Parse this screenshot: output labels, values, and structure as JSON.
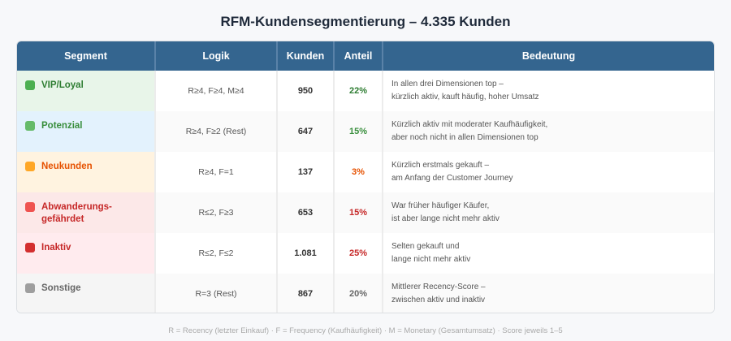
{
  "title": "RFM-Kundensegmentierung – 4.335 Kunden",
  "headers": [
    "Segment",
    "Logik",
    "Kunden",
    "Anteil",
    "Bedeutung"
  ],
  "rows": [
    {
      "segment": "VIP/Loyal",
      "logic": "R≥4, F≥4, M≥4",
      "customers": "950",
      "share": "22%",
      "meaning1": "In allen drei Dimensionen top –",
      "meaning2": "kürzlich aktiv, kauft häufig, hoher Umsatz",
      "bg": "#e8f5e9",
      "color": "#2e7d32",
      "dot": "#4caf50",
      "share_color": "#2e7d32"
    },
    {
      "segment": "Potenzial",
      "logic": "R≥4, F≥2 (Rest)",
      "customers": "647",
      "share": "15%",
      "meaning1": "Kürzlich aktiv mit moderater Kaufhäufigkeit,",
      "meaning2": "aber noch nicht in allen Dimensionen top",
      "bg": "#e3f2fd",
      "color": "#388e3c",
      "dot": "#66bb6a",
      "share_color": "#388e3c"
    },
    {
      "segment": "Neukunden",
      "logic": "R≥4, F=1",
      "customers": "137",
      "share": "3%",
      "meaning1": "Kürzlich erstmals gekauft –",
      "meaning2": "am Anfang der Customer Journey",
      "bg": "#fff3e0",
      "color": "#e65100",
      "dot": "#ffa726",
      "share_color": "#e65100"
    },
    {
      "segment": "Abwanderungs-gefährdet",
      "logic": "R≤2, F≥3",
      "customers": "653",
      "share": "15%",
      "meaning1": "War früher häufiger Käufer,",
      "meaning2": "ist aber lange nicht mehr aktiv",
      "bg": "#fce8e8",
      "color": "#c62828",
      "dot": "#ef5350",
      "share_color": "#c62828"
    },
    {
      "segment": "Inaktiv",
      "logic": "R≤2, F≤2",
      "customers": "1.081",
      "share": "25%",
      "meaning1": "Selten gekauft und",
      "meaning2": "lange nicht mehr aktiv",
      "bg": "#ffebee",
      "color": "#c62828",
      "dot": "#d32f2f",
      "share_color": "#c62828"
    },
    {
      "segment": "Sonstige",
      "logic": "R=3 (Rest)",
      "customers": "867",
      "share": "20%",
      "meaning1": "Mittlerer Recency-Score –",
      "meaning2": "zwischen aktiv und inaktiv",
      "bg": "#f5f5f5",
      "color": "#666666",
      "dot": "#9e9e9e",
      "share_color": "#666666"
    }
  ],
  "footnote": "R = Recency (letzter Einkauf) · F = Frequency (Kaufhäufigkeit) · M = Monetary (Gesamtumsatz) · Score jeweils 1–5"
}
